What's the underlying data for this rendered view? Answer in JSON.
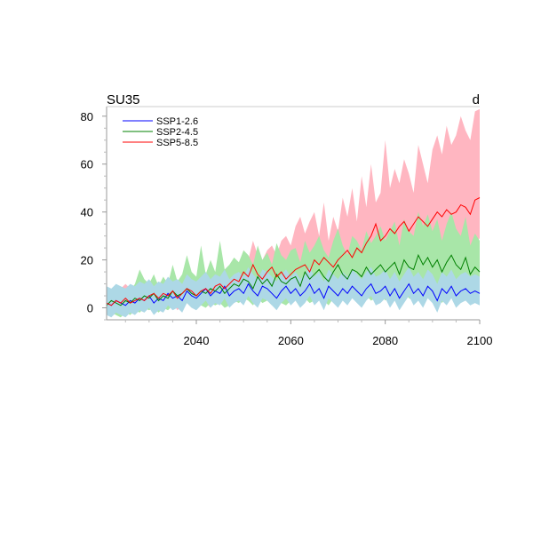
{
  "chart_data": {
    "type": "line",
    "title_left": "SU35",
    "title_right": "d",
    "xlabel": "",
    "ylabel": "",
    "xlim": [
      2021,
      2100
    ],
    "ylim": [
      -5,
      84
    ],
    "x_ticks": [
      2040,
      2060,
      2080,
      2100
    ],
    "y_ticks": [
      0,
      20,
      40,
      60,
      80
    ],
    "x_tick_labels": [
      "2040",
      "2060",
      "2080",
      "2100"
    ],
    "y_tick_labels": [
      "0",
      "20",
      "40",
      "60",
      "80"
    ],
    "legend": {
      "position": "top-left",
      "entries": [
        {
          "label": "SSP1-2.6",
          "color": "#0000ff"
        },
        {
          "label": "SSP2-4.5",
          "color": "#008000"
        },
        {
          "label": "SSP5-8.5",
          "color": "#ff0000"
        }
      ]
    },
    "series": [
      {
        "name": "SSP5-8.5",
        "color": "#ff0000",
        "band_color": "#ffb6c1",
        "x_start": 2021,
        "values": [
          2,
          1,
          3,
          2,
          4,
          2,
          3,
          4,
          3,
          5,
          6,
          4,
          6,
          5,
          7,
          4,
          6,
          8,
          7,
          5,
          7,
          8,
          6,
          9,
          10,
          8,
          10,
          12,
          11,
          15,
          13,
          18,
          14,
          12,
          15,
          17,
          13,
          15,
          12,
          14,
          16,
          17,
          18,
          15,
          20,
          18,
          21,
          19,
          17,
          20,
          22,
          24,
          21,
          25,
          23,
          27,
          30,
          35,
          28,
          30,
          33,
          31,
          34,
          36,
          32,
          35,
          38,
          36,
          34,
          37,
          40,
          38,
          41,
          39,
          40,
          43,
          42,
          39,
          45,
          46
        ],
        "band_low": [
          -2,
          -3,
          -1,
          -2,
          0,
          -2,
          -1,
          0,
          -1,
          0,
          1,
          -1,
          1,
          0,
          2,
          -1,
          1,
          2,
          1,
          0,
          1,
          2,
          0,
          3,
          3,
          2,
          3,
          4,
          3,
          5,
          4,
          6,
          4,
          3,
          5,
          6,
          4,
          5,
          3,
          4,
          5,
          6,
          6,
          5,
          7,
          6,
          8,
          7,
          6,
          8,
          9,
          10,
          8,
          11,
          10,
          12,
          14,
          16,
          13,
          15,
          16,
          15,
          17,
          18,
          16,
          18,
          20,
          19,
          18,
          20,
          22,
          21,
          23,
          22,
          23,
          25,
          24,
          22,
          27,
          29
        ],
        "band_high": [
          8,
          7,
          9,
          8,
          10,
          8,
          9,
          10,
          9,
          11,
          12,
          10,
          12,
          11,
          13,
          10,
          12,
          14,
          13,
          11,
          13,
          14,
          12,
          15,
          16,
          14,
          16,
          20,
          18,
          24,
          20,
          28,
          22,
          20,
          24,
          26,
          22,
          28,
          30,
          26,
          34,
          38,
          31,
          36,
          40,
          30,
          44,
          28,
          38,
          32,
          46,
          38,
          50,
          36,
          55,
          42,
          60,
          44,
          48,
          70,
          50,
          58,
          52,
          62,
          56,
          48,
          68,
          60,
          52,
          66,
          72,
          64,
          76,
          68,
          72,
          80,
          74,
          70,
          82,
          83
        ]
      },
      {
        "name": "SSP2-4.5",
        "color": "#008000",
        "band_color": "#a8e6a8",
        "x_start": 2021,
        "values": [
          1,
          3,
          2,
          1,
          3,
          2,
          4,
          3,
          5,
          4,
          6,
          3,
          5,
          4,
          7,
          5,
          6,
          8,
          6,
          5,
          7,
          6,
          8,
          7,
          9,
          6,
          8,
          10,
          9,
          12,
          11,
          8,
          13,
          10,
          12,
          9,
          14,
          11,
          10,
          12,
          13,
          9,
          15,
          12,
          14,
          16,
          13,
          11,
          15,
          18,
          14,
          12,
          16,
          15,
          13,
          17,
          14,
          16,
          18,
          15,
          17,
          19,
          14,
          20,
          17,
          16,
          22,
          18,
          21,
          17,
          20,
          15,
          19,
          22,
          18,
          16,
          21,
          14,
          17,
          15
        ],
        "band_low": [
          -3,
          -2,
          -3,
          -4,
          -2,
          -3,
          -1,
          -2,
          0,
          -1,
          0,
          -2,
          0,
          -1,
          1,
          0,
          1,
          2,
          0,
          0,
          1,
          0,
          2,
          1,
          2,
          0,
          1,
          3,
          2,
          4,
          3,
          1,
          4,
          2,
          3,
          1,
          4,
          2,
          1,
          3,
          3,
          0,
          4,
          2,
          3,
          5,
          3,
          1,
          4,
          6,
          3,
          2,
          5,
          4,
          2,
          5,
          3,
          4,
          6,
          3,
          5,
          6,
          2,
          7,
          4,
          3,
          8,
          5,
          7,
          4,
          6,
          2,
          5,
          8,
          4,
          3,
          7,
          1,
          3,
          2
        ],
        "band_high": [
          6,
          8,
          7,
          6,
          8,
          7,
          10,
          16,
          12,
          10,
          14,
          9,
          13,
          10,
          18,
          11,
          14,
          22,
          15,
          13,
          26,
          14,
          20,
          15,
          28,
          16,
          18,
          21,
          19,
          24,
          22,
          18,
          26,
          20,
          23,
          18,
          27,
          22,
          20,
          24,
          25,
          19,
          28,
          23,
          26,
          30,
          24,
          21,
          28,
          33,
          26,
          22,
          30,
          28,
          24,
          32,
          27,
          30,
          34,
          28,
          32,
          36,
          26,
          37,
          32,
          30,
          40,
          34,
          39,
          32,
          37,
          28,
          35,
          40,
          33,
          30,
          38,
          26,
          31,
          28
        ]
      },
      {
        "name": "SSP1-2.6",
        "color": "#0000ff",
        "band_color": "#add8e6",
        "x_start": 2021,
        "values": [
          2,
          1,
          3,
          2,
          1,
          3,
          2,
          4,
          3,
          5,
          2,
          4,
          3,
          6,
          4,
          5,
          3,
          7,
          5,
          4,
          6,
          8,
          5,
          7,
          6,
          9,
          5,
          7,
          8,
          6,
          10,
          7,
          5,
          9,
          8,
          6,
          4,
          7,
          9,
          6,
          8,
          5,
          7,
          10,
          6,
          8,
          4,
          9,
          7,
          5,
          8,
          6,
          9,
          7,
          5,
          8,
          10,
          6,
          7,
          9,
          5,
          8,
          4,
          7,
          10,
          6,
          8,
          5,
          9,
          7,
          3,
          8,
          6,
          9,
          5,
          7,
          8,
          6,
          7,
          6
        ],
        "band_low": [
          -3,
          -4,
          -2,
          -3,
          -4,
          -2,
          -3,
          -1,
          -2,
          0,
          -3,
          -1,
          -2,
          1,
          -1,
          0,
          -2,
          2,
          0,
          -1,
          1,
          3,
          0,
          2,
          1,
          4,
          0,
          2,
          3,
          1,
          5,
          2,
          0,
          4,
          3,
          1,
          -1,
          2,
          4,
          1,
          3,
          0,
          2,
          5,
          1,
          3,
          -1,
          4,
          2,
          0,
          3,
          1,
          4,
          2,
          0,
          3,
          5,
          1,
          2,
          4,
          0,
          3,
          -1,
          2,
          5,
          1,
          3,
          0,
          4,
          2,
          -2,
          3,
          1,
          4,
          0,
          2,
          3,
          1,
          2,
          1
        ],
        "band_high": [
          9,
          8,
          10,
          9,
          8,
          10,
          9,
          11,
          10,
          12,
          9,
          11,
          10,
          13,
          11,
          12,
          10,
          14,
          12,
          11,
          13,
          15,
          12,
          14,
          13,
          16,
          12,
          14,
          15,
          13,
          17,
          14,
          12,
          16,
          15,
          13,
          11,
          14,
          16,
          13,
          15,
          12,
          14,
          17,
          13,
          15,
          11,
          16,
          14,
          12,
          15,
          13,
          16,
          14,
          12,
          15,
          17,
          13,
          14,
          16,
          12,
          15,
          11,
          14,
          17,
          13,
          15,
          12,
          16,
          14,
          10,
          15,
          13,
          16,
          12,
          14,
          15,
          13,
          14,
          13
        ]
      }
    ]
  }
}
